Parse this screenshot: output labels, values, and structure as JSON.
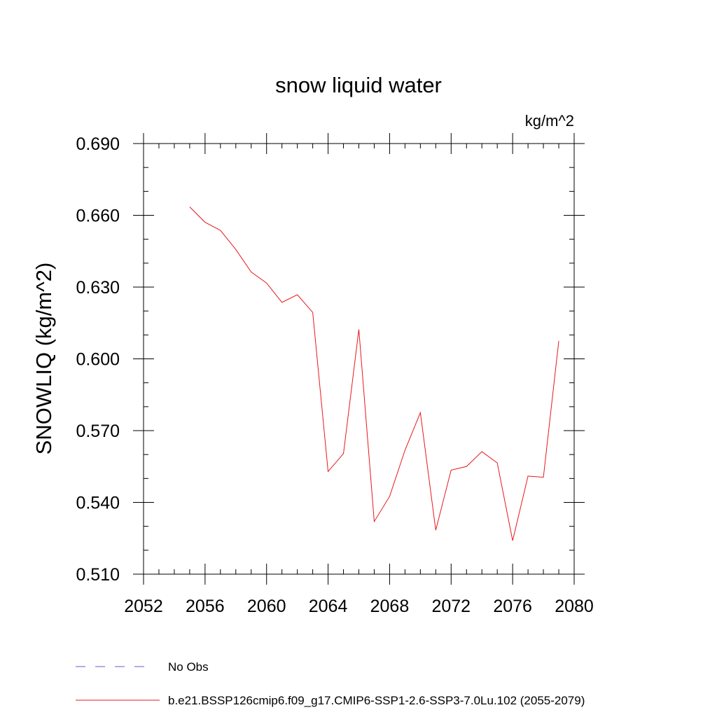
{
  "chart_data": {
    "type": "line",
    "title": "snow liquid water",
    "units": "kg/m^2",
    "ylabel": "SNOWLIQ  (kg/m^2)",
    "xlabel": "",
    "xlim": [
      2052,
      2080
    ],
    "ylim": [
      0.51,
      0.69
    ],
    "x_ticks": [
      2052,
      2056,
      2060,
      2064,
      2068,
      2072,
      2076,
      2080
    ],
    "x_tick_labels": [
      "2052",
      "2056",
      "2060",
      "2064",
      "2068",
      "2072",
      "2076",
      "2080"
    ],
    "y_ticks": [
      0.51,
      0.54,
      0.57,
      0.6,
      0.63,
      0.66,
      0.69
    ],
    "y_tick_labels": [
      "0.510",
      "0.540",
      "0.570",
      "0.600",
      "0.630",
      "0.660",
      "0.690"
    ],
    "grid": false,
    "legend_placement": "bottom",
    "series": [
      {
        "name": "No Obs",
        "color": "#6a5acd",
        "style": "dashed",
        "x": [],
        "values": []
      },
      {
        "name": "b.e21.BSSP126cmip6.f09_g17.CMIP6-SSP1-2.6-SSP3-7.0Lu.102 (2055-2079)",
        "color": "#e8171c",
        "style": "solid",
        "x": [
          2055,
          2056,
          2057,
          2058,
          2059,
          2060,
          2061,
          2062,
          2063,
          2064,
          2065,
          2066,
          2067,
          2068,
          2069,
          2070,
          2071,
          2072,
          2073,
          2074,
          2075,
          2076,
          2077,
          2078,
          2079
        ],
        "values": [
          0.6635,
          0.6571,
          0.6537,
          0.6457,
          0.6363,
          0.6317,
          0.6236,
          0.6268,
          0.6194,
          0.5529,
          0.5604,
          0.6123,
          0.532,
          0.5425,
          0.5618,
          0.5775,
          0.5284,
          0.5535,
          0.555,
          0.5612,
          0.5565,
          0.524,
          0.551,
          0.5505,
          0.6075
        ]
      }
    ]
  }
}
